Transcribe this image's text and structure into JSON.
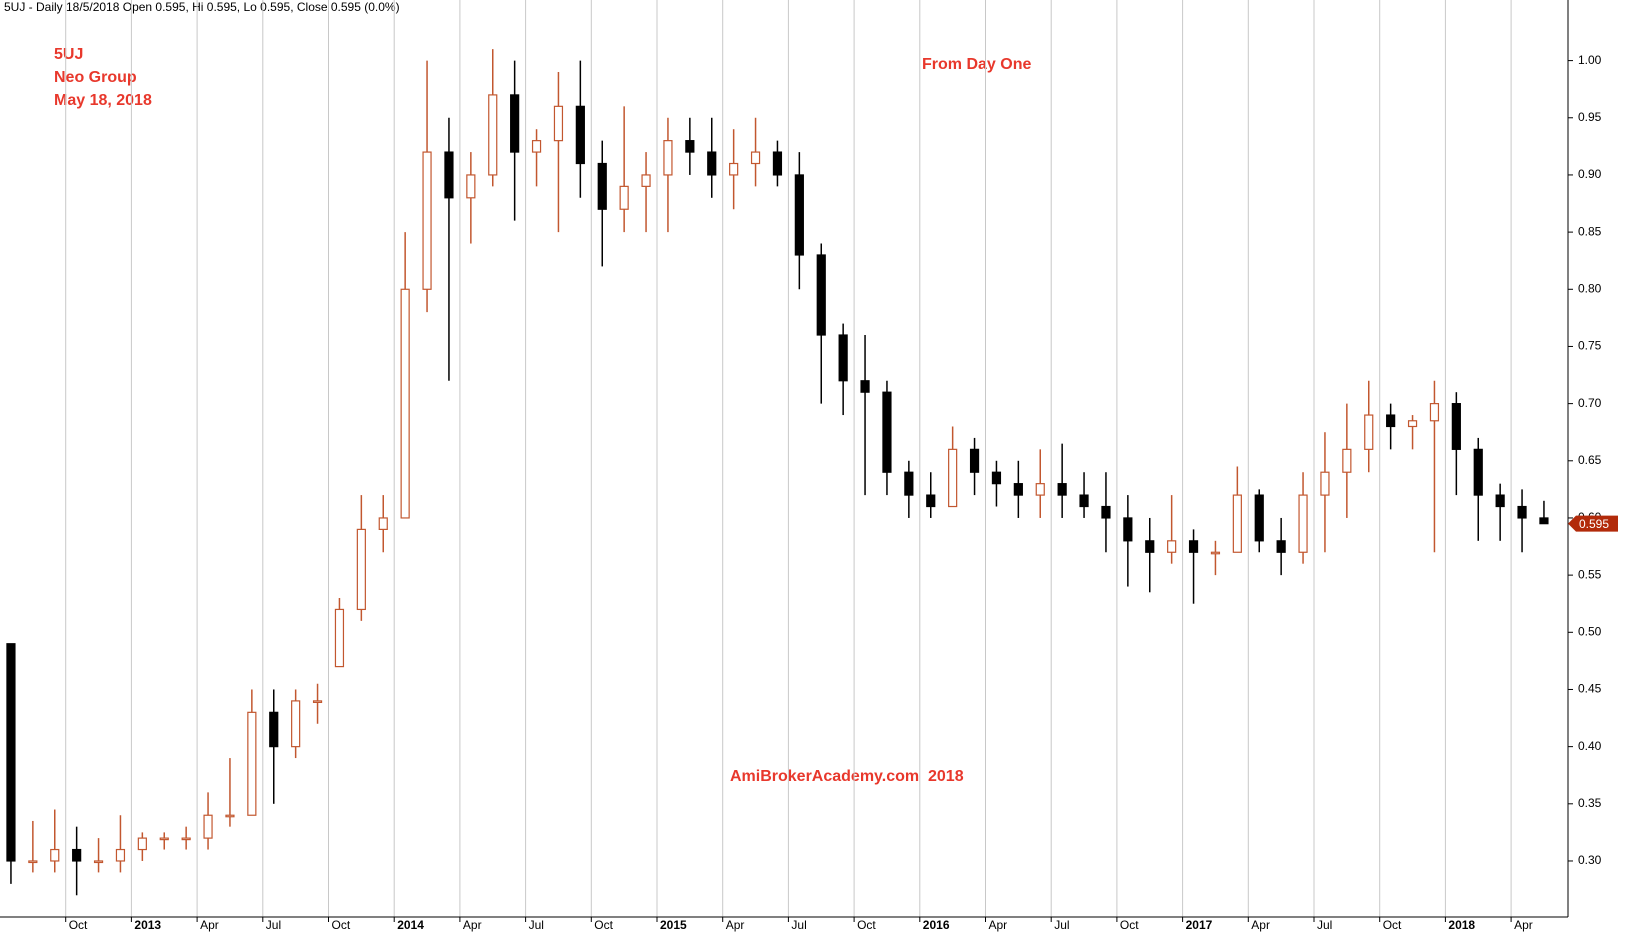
{
  "chart_data": {
    "type": "candlestick",
    "title": "5UJ - Daily 18/5/2018 Open 0.595, Hi 0.595, Lo 0.595, Close 0.595 (0.0%)",
    "annotations": [
      "5UJ",
      "Neo Group",
      "May 18, 2018",
      "From Day One",
      "AmiBrokerAcademy.com  2018"
    ],
    "categories": [
      null,
      null,
      null,
      "Oct",
      null,
      null,
      "2013",
      null,
      null,
      "Apr",
      null,
      null,
      "Jul",
      null,
      null,
      "Oct",
      null,
      null,
      "2014",
      null,
      null,
      "Apr",
      null,
      null,
      "Jul",
      null,
      null,
      "Oct",
      null,
      null,
      "2015",
      null,
      null,
      "Apr",
      null,
      null,
      "Jul",
      null,
      null,
      "Oct",
      null,
      null,
      "2016",
      null,
      null,
      "Apr",
      null,
      null,
      "Jul",
      null,
      null,
      "Oct",
      null,
      null,
      "2017",
      null,
      null,
      "Apr",
      null,
      null,
      "Jul",
      null,
      null,
      "Oct",
      null,
      null,
      "2018",
      null,
      null,
      "Apr",
      null
    ],
    "open": [
      0.49,
      0.3,
      0.3,
      0.31,
      0.3,
      0.3,
      0.31,
      0.32,
      0.32,
      0.32,
      0.34,
      0.34,
      0.43,
      0.4,
      0.44,
      0.47,
      0.52,
      0.59,
      0.6,
      0.8,
      0.92,
      0.88,
      0.9,
      0.97,
      0.92,
      0.93,
      0.96,
      0.91,
      0.87,
      0.89,
      0.9,
      0.93,
      0.92,
      0.9,
      0.91,
      0.92,
      0.9,
      0.83,
      0.76,
      0.72,
      0.71,
      0.64,
      0.62,
      0.61,
      0.66,
      0.64,
      0.63,
      0.62,
      0.63,
      0.62,
      0.61,
      0.6,
      0.58,
      0.57,
      0.58,
      0.57,
      0.57,
      0.62,
      0.58,
      0.57,
      0.62,
      0.64,
      0.66,
      0.69,
      0.68,
      0.685,
      0.7,
      0.66,
      0.62,
      0.61,
      0.6
    ],
    "high": [
      0.49,
      0.335,
      0.345,
      0.33,
      0.32,
      0.34,
      0.325,
      0.325,
      0.33,
      0.36,
      0.39,
      0.45,
      0.45,
      0.45,
      0.455,
      0.53,
      0.62,
      0.62,
      0.85,
      1.0,
      0.95,
      0.92,
      1.01,
      1.0,
      0.94,
      0.99,
      1.0,
      0.93,
      0.96,
      0.92,
      0.95,
      0.95,
      0.95,
      0.94,
      0.95,
      0.93,
      0.92,
      0.84,
      0.77,
      0.76,
      0.72,
      0.65,
      0.64,
      0.68,
      0.67,
      0.65,
      0.65,
      0.66,
      0.665,
      0.64,
      0.64,
      0.62,
      0.6,
      0.62,
      0.59,
      0.58,
      0.645,
      0.625,
      0.6,
      0.64,
      0.675,
      0.7,
      0.72,
      0.7,
      0.69,
      0.72,
      0.71,
      0.67,
      0.63,
      0.625,
      0.615
    ],
    "low": [
      0.28,
      0.29,
      0.29,
      0.27,
      0.29,
      0.29,
      0.3,
      0.31,
      0.31,
      0.31,
      0.33,
      0.34,
      0.35,
      0.39,
      0.42,
      0.47,
      0.51,
      0.57,
      0.6,
      0.78,
      0.72,
      0.84,
      0.89,
      0.86,
      0.89,
      0.85,
      0.88,
      0.82,
      0.85,
      0.85,
      0.85,
      0.9,
      0.88,
      0.87,
      0.89,
      0.89,
      0.8,
      0.7,
      0.69,
      0.62,
      0.62,
      0.6,
      0.6,
      0.61,
      0.62,
      0.61,
      0.6,
      0.6,
      0.6,
      0.6,
      0.57,
      0.54,
      0.535,
      0.56,
      0.525,
      0.55,
      0.57,
      0.57,
      0.55,
      0.56,
      0.57,
      0.6,
      0.64,
      0.66,
      0.66,
      0.57,
      0.62,
      0.58,
      0.58,
      0.57,
      0.595
    ],
    "close": [
      0.3,
      0.3,
      0.31,
      0.3,
      0.3,
      0.31,
      0.32,
      0.32,
      0.32,
      0.34,
      0.34,
      0.43,
      0.4,
      0.44,
      0.44,
      0.52,
      0.59,
      0.6,
      0.8,
      0.92,
      0.88,
      0.9,
      0.97,
      0.92,
      0.93,
      0.96,
      0.91,
      0.87,
      0.89,
      0.9,
      0.93,
      0.92,
      0.9,
      0.91,
      0.92,
      0.9,
      0.83,
      0.76,
      0.72,
      0.71,
      0.64,
      0.62,
      0.61,
      0.66,
      0.64,
      0.63,
      0.62,
      0.63,
      0.62,
      0.61,
      0.6,
      0.58,
      0.57,
      0.58,
      0.57,
      0.57,
      0.62,
      0.58,
      0.57,
      0.62,
      0.64,
      0.66,
      0.69,
      0.68,
      0.685,
      0.7,
      0.66,
      0.62,
      0.61,
      0.6,
      0.595
    ],
    "up_color": "#c2572f",
    "down_color": "#000000",
    "ylim": [
      0.251,
      1.053
    ],
    "yticks": [
      {
        "value": 0.3,
        "label": "0.30"
      },
      {
        "value": 0.35,
        "label": "0.35"
      },
      {
        "value": 0.4,
        "label": "0.40"
      },
      {
        "value": 0.45,
        "label": "0.45"
      },
      {
        "value": 0.5,
        "label": "0.50"
      },
      {
        "value": 0.55,
        "label": "0.55"
      },
      {
        "value": 0.6,
        "label": "0.60"
      },
      {
        "value": 0.65,
        "label": "0.65"
      },
      {
        "value": 0.7,
        "label": "0.70"
      },
      {
        "value": 0.75,
        "label": "0.75"
      },
      {
        "value": 0.8,
        "label": "0.80"
      },
      {
        "value": 0.85,
        "label": "0.85"
      },
      {
        "value": 0.9,
        "label": "0.90"
      },
      {
        "value": 0.95,
        "label": "0.95"
      },
      {
        "value": 1.0,
        "label": "1.00"
      }
    ],
    "grid": "x",
    "last_price_color": "#b22a0a"
  }
}
